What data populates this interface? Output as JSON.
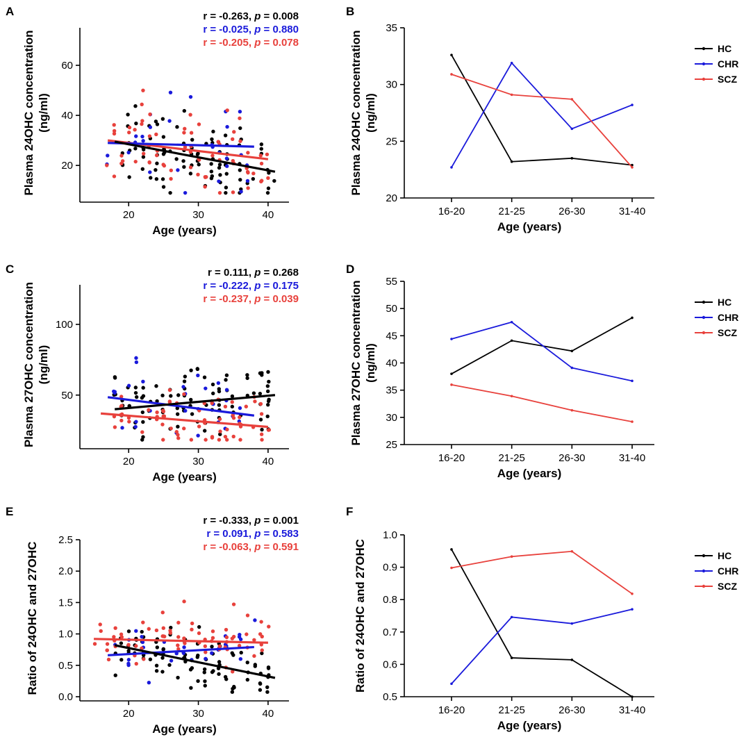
{
  "colors": {
    "HC": "#000000",
    "CHR": "#1a1adb",
    "SCZ": "#e8413c"
  },
  "chart_data": [
    {
      "id": "A",
      "type": "scatter",
      "letter": "A",
      "xlabel": "Age (years)",
      "ylabel": [
        "Plasma 24OHC concentration",
        "(ng/ml)"
      ],
      "xlim": [
        13,
        43
      ],
      "ylim": [
        7,
        75
      ],
      "xticks": [
        20,
        30,
        40
      ],
      "yticks": [
        20,
        40,
        60
      ],
      "stats": [
        {
          "group": "HC",
          "r": "r = -0.263, ",
          "p_label": "p",
          "p": " = 0.008"
        },
        {
          "group": "CHR",
          "r": "r = -0.025, ",
          "p_label": "p",
          "p": " = 0.880"
        },
        {
          "group": "SCZ",
          "r": "r = -0.205, ",
          "p_label": "p",
          "p": " = 0.078"
        }
      ],
      "fits": [
        {
          "group": "HC",
          "x": [
            18,
            41
          ],
          "y": [
            29.5,
            17.5
          ]
        },
        {
          "group": "CHR",
          "x": [
            17,
            38
          ],
          "y": [
            29.0,
            27.5
          ]
        },
        {
          "group": "SCZ",
          "x": [
            17,
            40
          ],
          "y": [
            30.0,
            22.5
          ]
        }
      ]
    },
    {
      "id": "B",
      "type": "line",
      "letter": "B",
      "xlabel": "Age (years)",
      "ylabel": [
        "Plasma 24OHC concentration",
        "(ng/ml)"
      ],
      "categories": [
        "16-20",
        "21-25",
        "26-30",
        "31-40"
      ],
      "ylim": [
        20,
        35
      ],
      "yticks": [
        20,
        25,
        30,
        35
      ],
      "legend": [
        "HC",
        "CHR",
        "SCZ"
      ],
      "legend_position": "right",
      "series": [
        {
          "name": "HC",
          "values": [
            32.6,
            23.2,
            23.5,
            22.9
          ]
        },
        {
          "name": "CHR",
          "values": [
            22.7,
            31.9,
            26.1,
            28.2
          ]
        },
        {
          "name": "SCZ",
          "values": [
            30.9,
            29.1,
            28.7,
            22.7
          ]
        }
      ]
    },
    {
      "id": "C",
      "type": "scatter",
      "letter": "C",
      "xlabel": "Age (years)",
      "ylabel": [
        "Plasma 27OHC concentration",
        "(ng/ml)"
      ],
      "xlim": [
        13,
        43
      ],
      "ylim": [
        15,
        128
      ],
      "xticks": [
        20,
        30,
        40
      ],
      "yticks": [
        50,
        100
      ],
      "stats": [
        {
          "group": "HC",
          "r": "r = 0.111, ",
          "p_label": "p",
          "p": " = 0.268"
        },
        {
          "group": "CHR",
          "r": "r = -0.222, ",
          "p_label": "p",
          "p": " = 0.175"
        },
        {
          "group": "SCZ",
          "r": "r = -0.237, ",
          "p_label": "p",
          "p": " = 0.039"
        }
      ],
      "fits": [
        {
          "group": "HC",
          "x": [
            18,
            41
          ],
          "y": [
            40.0,
            50.0
          ]
        },
        {
          "group": "CHR",
          "x": [
            17,
            38
          ],
          "y": [
            48.5,
            35.5
          ]
        },
        {
          "group": "SCZ",
          "x": [
            16,
            40
          ],
          "y": [
            37.0,
            27.5
          ]
        }
      ]
    },
    {
      "id": "D",
      "type": "line",
      "letter": "D",
      "xlabel": "Age (years)",
      "ylabel": [
        "Plasma 27OHC concentration",
        "(ng/ml)"
      ],
      "categories": [
        "16-20",
        "21-25",
        "26-30",
        "31-40"
      ],
      "ylim": [
        25,
        55
      ],
      "yticks": [
        25,
        30,
        35,
        40,
        45,
        50,
        55
      ],
      "legend": [
        "HC",
        "CHR",
        "SCZ"
      ],
      "legend_position": "right",
      "series": [
        {
          "name": "HC",
          "values": [
            38.0,
            44.1,
            42.2,
            48.3
          ]
        },
        {
          "name": "CHR",
          "values": [
            44.4,
            47.5,
            39.1,
            36.7
          ]
        },
        {
          "name": "SCZ",
          "values": [
            36.0,
            33.9,
            31.3,
            29.2
          ]
        }
      ]
    },
    {
      "id": "E",
      "type": "scatter",
      "letter": "E",
      "xlabel": "Age (years)",
      "ylabel": [
        "Ratio of 24OHC and 27OHC"
      ],
      "xlim": [
        13,
        43
      ],
      "ylim": [
        0,
        2.5
      ],
      "xticks": [
        20,
        30,
        40
      ],
      "yticks": [
        0.0,
        0.5,
        1.0,
        1.5,
        2.0,
        2.5
      ],
      "ytick_labels": [
        "0.0",
        "0.5",
        "1.0",
        "1.5",
        "2.0",
        "2.5"
      ],
      "stats": [
        {
          "group": "HC",
          "r": "r = -0.333, ",
          "p_label": "p",
          "p": " = 0.001"
        },
        {
          "group": "CHR",
          "r": "r = 0.091, ",
          "p_label": "p",
          "p": " = 0.583"
        },
        {
          "group": "SCZ",
          "r": "r = -0.063, ",
          "p_label": "p",
          "p": " = 0.591"
        }
      ],
      "fits": [
        {
          "group": "HC",
          "x": [
            18,
            41
          ],
          "y": [
            0.82,
            0.3
          ]
        },
        {
          "group": "CHR",
          "x": [
            17,
            38
          ],
          "y": [
            0.66,
            0.79
          ]
        },
        {
          "group": "SCZ",
          "x": [
            15,
            40
          ],
          "y": [
            0.92,
            0.86
          ]
        }
      ]
    },
    {
      "id": "F",
      "type": "line",
      "letter": "F",
      "xlabel": "Age (years)",
      "ylabel": [
        "Ratio of 24OHC and 27OHC"
      ],
      "categories": [
        "16-20",
        "21-25",
        "26-30",
        "31-40"
      ],
      "ylim": [
        0.5,
        1.0
      ],
      "yticks": [
        0.5,
        0.6,
        0.7,
        0.8,
        0.9,
        1.0
      ],
      "ytick_labels": [
        "0.5",
        "0.6",
        "0.7",
        "0.8",
        "0.9",
        "1.0"
      ],
      "legend": [
        "HC",
        "CHR",
        "SCZ"
      ],
      "legend_position": "right",
      "series": [
        {
          "name": "HC",
          "values": [
            0.955,
            0.62,
            0.614,
            0.5
          ]
        },
        {
          "name": "CHR",
          "values": [
            0.54,
            0.746,
            0.726,
            0.77
          ]
        },
        {
          "name": "SCZ",
          "values": [
            0.898,
            0.933,
            0.949,
            0.818
          ]
        }
      ]
    }
  ]
}
